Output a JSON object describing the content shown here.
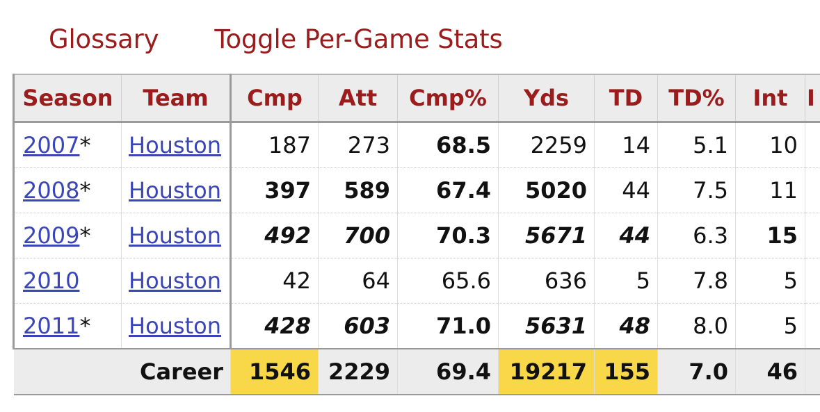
{
  "links": {
    "glossary": "Glossary",
    "toggle": "Toggle Per-Game Stats"
  },
  "table": {
    "headers": [
      "Season",
      "Team",
      "Cmp",
      "Att",
      "Cmp%",
      "Yds",
      "TD",
      "TD%",
      "Int",
      "I"
    ],
    "rows": [
      {
        "season": "2007",
        "mark": "*",
        "team": "Houston",
        "cmp": "187",
        "att": "273",
        "cmp_pct": "68.5",
        "yds": "2259",
        "td": "14",
        "td_pct": "5.1",
        "int": "10"
      },
      {
        "season": "2008",
        "mark": "*",
        "team": "Houston",
        "cmp": "397",
        "att": "589",
        "cmp_pct": "67.4",
        "yds": "5020",
        "td": "44",
        "td_pct": "7.5",
        "int": "11"
      },
      {
        "season": "2009",
        "mark": "*",
        "team": "Houston",
        "cmp": "492",
        "att": "700",
        "cmp_pct": "70.3",
        "yds": "5671",
        "td": "44",
        "td_pct": "6.3",
        "int": "15"
      },
      {
        "season": "2010",
        "mark": "",
        "team": "Houston",
        "cmp": "42",
        "att": "64",
        "cmp_pct": "65.6",
        "yds": "636",
        "td": "5",
        "td_pct": "7.8",
        "int": "5"
      },
      {
        "season": "2011",
        "mark": "*",
        "team": "Houston",
        "cmp": "428",
        "att": "603",
        "cmp_pct": "71.0",
        "yds": "5631",
        "td": "48",
        "td_pct": "8.0",
        "int": "5"
      }
    ],
    "career": {
      "label": "Career",
      "cmp": "1546",
      "att": "2229",
      "cmp_pct": "69.4",
      "yds": "19217",
      "td": "155",
      "td_pct": "7.0",
      "int": "46"
    },
    "highlight_color": "#f8d848",
    "header_color": "#9b1c1c",
    "link_color": "#3a46b8"
  }
}
